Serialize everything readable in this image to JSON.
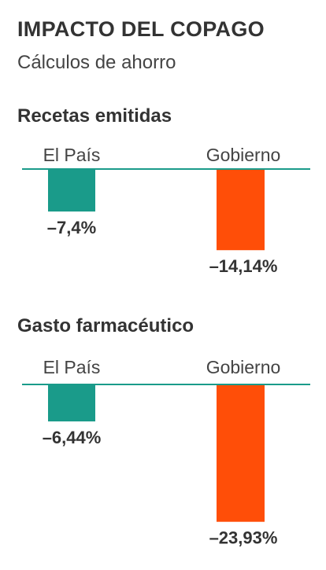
{
  "header": {
    "title": "IMPACTO DEL COPAGO",
    "subtitle": "Cálculos de ahorro"
  },
  "colors": {
    "el_pais": "#1a9b8a",
    "gobierno": "#ff4e08",
    "baseline": "#1a9b8a",
    "text": "#333333"
  },
  "chart_data": [
    {
      "type": "bar",
      "title": "Recetas emitidas",
      "categories": [
        "El País",
        "Gobierno"
      ],
      "values": [
        -7.4,
        -14.14
      ],
      "value_labels": [
        "–7,4%",
        "–14,14%"
      ],
      "unit": "%"
    },
    {
      "type": "bar",
      "title": "Gasto farmacéutico",
      "categories": [
        "El País",
        "Gobierno"
      ],
      "values": [
        -6.44,
        -23.93
      ],
      "value_labels": [
        "–6,44%",
        "–23,93%"
      ],
      "unit": "%"
    }
  ]
}
